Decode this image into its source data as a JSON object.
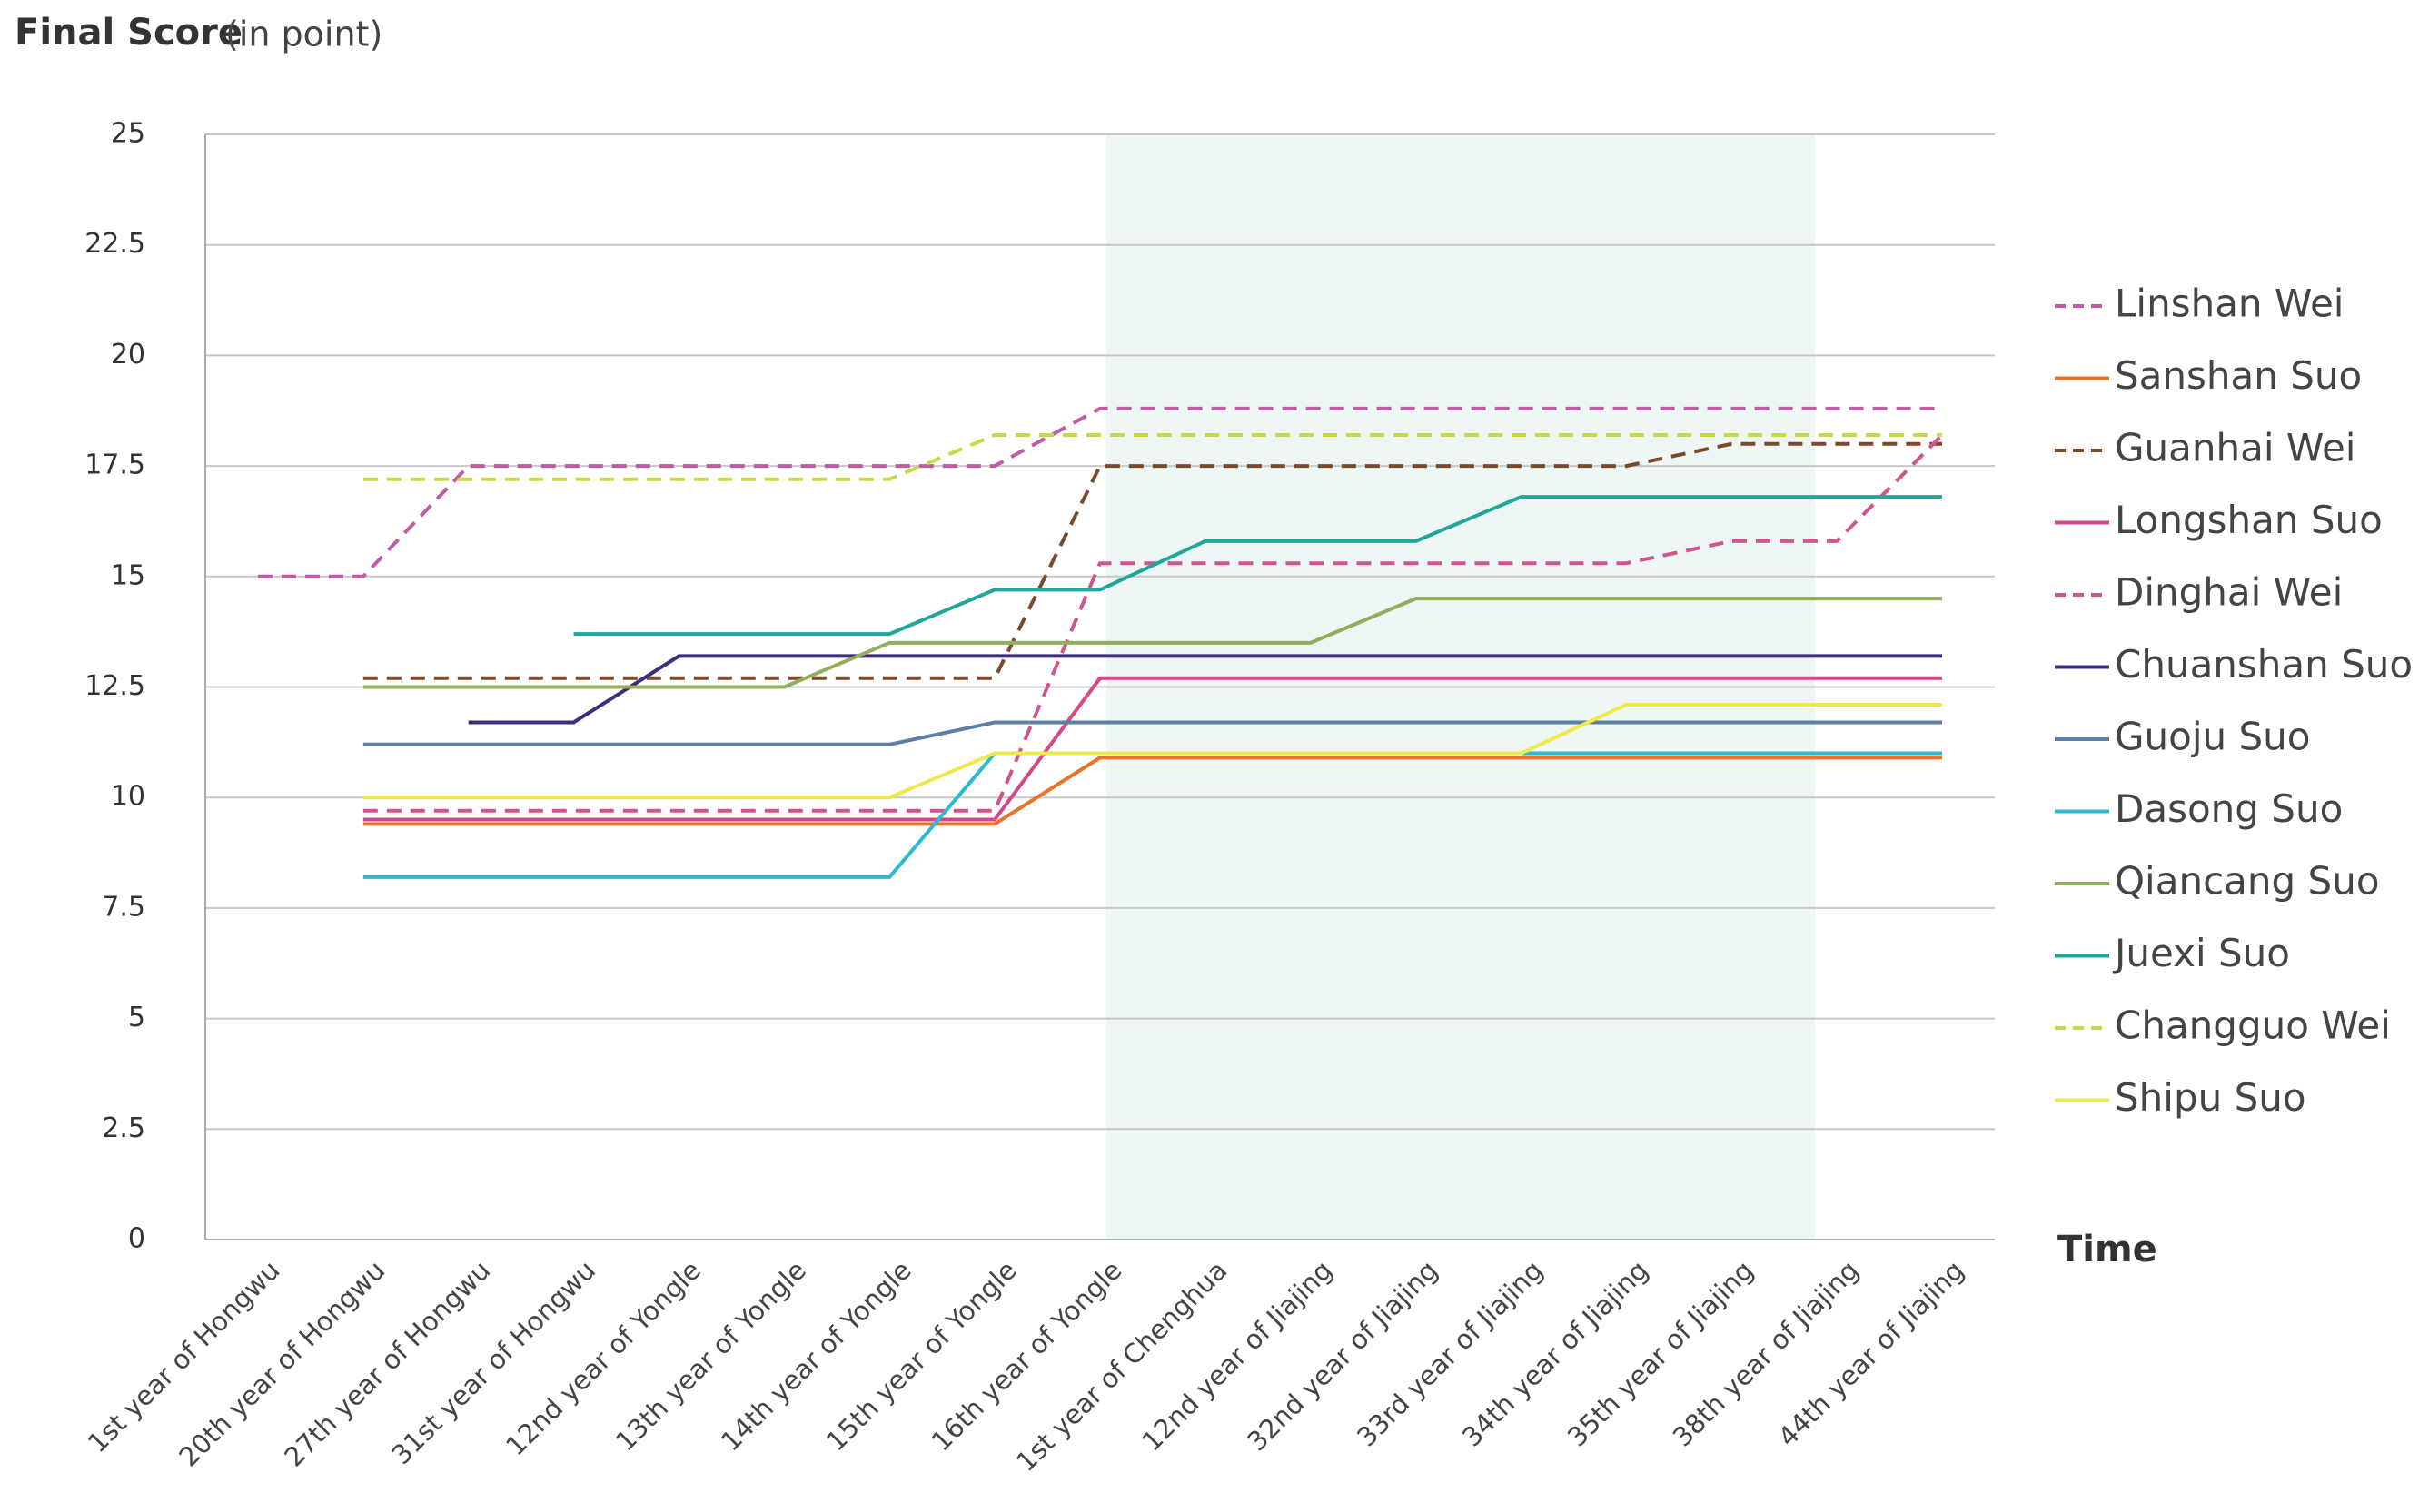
{
  "chart_data": {
    "type": "line",
    "title": "Final Score",
    "title_unit": "(in point)",
    "x_label": "Time",
    "categories": [
      "1st year of Hongwu",
      "20th year of Hongwu",
      "27th year of Hongwu",
      "31st year of Hongwu",
      "12nd year of Yongle",
      "13th year of Yongle",
      "14th year of Yongle",
      "15th year of Yongle",
      "16th year of Yongle",
      "1st year of Chenghua",
      "12nd year of Jiajing",
      "32nd year of Jiajing",
      "33rd year of Jiajing",
      "34th year of Jiajing",
      "35th year of Jiajing",
      "38th year of Jiajing",
      "44th year of Jiajing"
    ],
    "ylim": [
      0,
      25
    ],
    "yticks": [
      0,
      2.5,
      5,
      7.5,
      10,
      12.5,
      15,
      17.5,
      20,
      22.5,
      25
    ],
    "grid": true,
    "legend": "right",
    "series": [
      {
        "name": "Linshan Wei",
        "color": "#c35aa6",
        "dashed": true,
        "values": [
          15,
          15,
          17.5,
          17.5,
          17.5,
          17.5,
          17.5,
          17.5,
          18.8,
          18.8,
          18.8,
          18.8,
          18.8,
          18.8,
          18.8,
          18.8,
          18.8
        ]
      },
      {
        "name": "Sanshan Suo",
        "color": "#e8742a",
        "dashed": false,
        "values": [
          null,
          9.4,
          9.4,
          9.4,
          9.4,
          9.4,
          9.4,
          9.4,
          10.9,
          10.9,
          10.9,
          10.9,
          10.9,
          10.9,
          10.9,
          10.9,
          10.9
        ]
      },
      {
        "name": "Guanhai Wei",
        "color": "#7a4a2a",
        "dashed": true,
        "values": [
          null,
          12.7,
          12.7,
          12.7,
          12.7,
          12.7,
          12.7,
          12.7,
          17.5,
          17.5,
          17.5,
          17.5,
          17.5,
          17.5,
          18,
          18,
          18
        ]
      },
      {
        "name": "Longshan Suo",
        "color": "#d6468a",
        "dashed": false,
        "values": [
          null,
          9.5,
          9.5,
          9.5,
          9.5,
          9.5,
          9.5,
          9.5,
          12.7,
          12.7,
          12.7,
          12.7,
          12.7,
          12.7,
          12.7,
          12.7,
          12.7
        ]
      },
      {
        "name": "Dinghai Wei",
        "color": "#d0558f",
        "dashed": true,
        "values": [
          null,
          9.7,
          9.7,
          9.7,
          9.7,
          9.7,
          9.7,
          9.7,
          15.3,
          15.3,
          15.3,
          15.3,
          15.3,
          15.3,
          15.8,
          15.8,
          18.2
        ]
      },
      {
        "name": "Chuanshan Suo",
        "color": "#3e2d7a",
        "dashed": false,
        "values": [
          null,
          null,
          11.7,
          11.7,
          13.2,
          13.2,
          13.2,
          13.2,
          13.2,
          13.2,
          13.2,
          13.2,
          13.2,
          13.2,
          13.2,
          13.2,
          13.2
        ]
      },
      {
        "name": "Guoju Suo",
        "color": "#5a7fa8",
        "dashed": false,
        "values": [
          null,
          11.2,
          11.2,
          11.2,
          11.2,
          11.2,
          11.2,
          11.7,
          11.7,
          11.7,
          11.7,
          11.7,
          11.7,
          11.7,
          11.7,
          11.7,
          11.7
        ]
      },
      {
        "name": "Dasong Suo",
        "color": "#2bbad0",
        "dashed": false,
        "values": [
          null,
          8.2,
          8.2,
          8.2,
          8.2,
          8.2,
          8.2,
          11,
          11,
          11,
          11,
          11,
          11,
          11,
          11,
          11,
          11
        ]
      },
      {
        "name": "Qiancang Suo",
        "color": "#93ad5e",
        "dashed": false,
        "values": [
          null,
          12.5,
          12.5,
          12.5,
          12.5,
          12.5,
          13.5,
          13.5,
          13.5,
          13.5,
          13.5,
          14.5,
          14.5,
          14.5,
          14.5,
          14.5,
          14.5
        ]
      },
      {
        "name": "Juexi Suo",
        "color": "#1fa89a",
        "dashed": false,
        "values": [
          null,
          null,
          null,
          13.7,
          13.7,
          13.7,
          13.7,
          14.7,
          14.7,
          15.8,
          15.8,
          15.8,
          16.8,
          16.8,
          16.8,
          16.8,
          16.8
        ]
      },
      {
        "name": "Changguo Wei",
        "color": "#c8d84a",
        "dashed": true,
        "values": [
          null,
          17.2,
          17.2,
          17.2,
          17.2,
          17.2,
          17.2,
          18.2,
          18.2,
          18.2,
          18.2,
          18.2,
          18.2,
          18.2,
          18.2,
          18.2,
          18.2
        ]
      },
      {
        "name": "Shipu Suo",
        "color": "#eeea4a",
        "dashed": false,
        "values": [
          null,
          10,
          10,
          10,
          10,
          10,
          10,
          11,
          11,
          11,
          11,
          11,
          11,
          12.1,
          12.1,
          12.1,
          12.1
        ]
      }
    ]
  }
}
